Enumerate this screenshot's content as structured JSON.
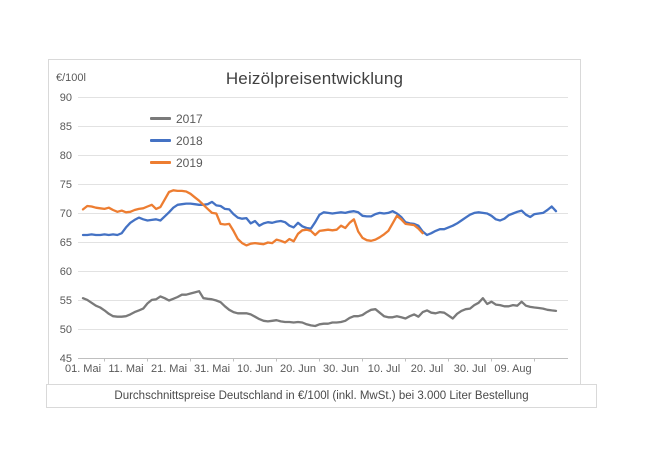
{
  "page": {
    "background": "#ffffff"
  },
  "chart": {
    "title": "Heizölpreisentwicklung",
    "y_axis_unit_label": "€/100l",
    "caption": "Durchschnittspreise Deutschland in €/100l (inkl. MwSt.) bei 3.000 Liter Bestellung"
  },
  "chart_data": {
    "type": "line",
    "title": "Heizölpreisentwicklung",
    "xlabel": "",
    "ylabel": "€/100l",
    "ylim": [
      45,
      90
    ],
    "ytick_values": [
      90,
      85,
      80,
      75,
      70,
      65,
      60,
      55,
      50,
      45
    ],
    "grid": true,
    "legend_position": "inside-top-left",
    "x_unit": "daily values, day 0 = 01. Mai; tick labels every 10 days",
    "x_tick_labels": [
      "01. Mai",
      "11. Mai",
      "21. Mai",
      "31. Mai",
      "10. Jun",
      "20. Jun",
      "30. Jun",
      "10. Jul",
      "20. Jul",
      "30. Jul",
      "09. Aug"
    ],
    "colors": {
      "grid": "#e2e2e2",
      "axis": "#bfbfbf",
      "text": "#595959"
    },
    "series": [
      {
        "name": "2017",
        "color": "#7a7a7a",
        "values": [
          55.4,
          55.1,
          54.6,
          54.1,
          53.8,
          53.3,
          52.7,
          52.3,
          52.2,
          52.2,
          52.3,
          52.6,
          53.0,
          53.3,
          53.6,
          54.5,
          55.1,
          55.2,
          55.7,
          55.4,
          55.0,
          55.3,
          55.6,
          56.0,
          56.0,
          56.2,
          56.4,
          56.6,
          55.4,
          55.3,
          55.2,
          55.0,
          54.7,
          54.0,
          53.4,
          53.0,
          52.8,
          52.8,
          52.8,
          52.6,
          52.2,
          51.8,
          51.5,
          51.4,
          51.5,
          51.6,
          51.4,
          51.3,
          51.3,
          51.2,
          51.3,
          51.2,
          50.9,
          50.7,
          50.6,
          50.9,
          51.0,
          51.0,
          51.2,
          51.2,
          51.3,
          51.5,
          52.0,
          52.3,
          52.3,
          52.5,
          53.0,
          53.4,
          53.5,
          52.9,
          52.3,
          52.1,
          52.1,
          52.3,
          52.1,
          51.9,
          52.3,
          52.6,
          52.2,
          53.0,
          53.3,
          52.9,
          52.8,
          53.0,
          52.9,
          52.4,
          51.9,
          52.7,
          53.2,
          53.5,
          53.6,
          54.2,
          54.6,
          55.4,
          54.4,
          54.8,
          54.3,
          54.2,
          54.0,
          54.0,
          54.2,
          54.1,
          54.8,
          54.1,
          53.9,
          53.8,
          53.7,
          53.6,
          53.4,
          53.3,
          53.2
        ]
      },
      {
        "name": "2018",
        "color": "#4472c4",
        "values": [
          66.3,
          66.3,
          66.4,
          66.3,
          66.3,
          66.4,
          66.3,
          66.4,
          66.3,
          66.6,
          67.6,
          68.4,
          68.9,
          69.3,
          69.0,
          68.8,
          68.9,
          69.0,
          68.8,
          69.5,
          70.2,
          71.0,
          71.5,
          71.6,
          71.7,
          71.7,
          71.6,
          71.5,
          71.5,
          71.6,
          72.0,
          71.4,
          71.3,
          70.8,
          70.7,
          69.9,
          69.3,
          69.1,
          69.2,
          68.3,
          68.7,
          67.9,
          68.3,
          68.5,
          68.4,
          68.6,
          68.7,
          68.5,
          67.9,
          67.6,
          68.4,
          67.8,
          67.5,
          67.4,
          68.5,
          69.8,
          70.2,
          70.1,
          70.0,
          70.1,
          70.2,
          70.1,
          70.3,
          70.4,
          70.2,
          69.6,
          69.5,
          69.5,
          69.9,
          70.1,
          70.0,
          70.1,
          70.4,
          70.0,
          69.4,
          68.5,
          68.3,
          68.2,
          67.9,
          66.9,
          66.3,
          66.6,
          67.0,
          67.3,
          67.3,
          67.6,
          67.9,
          68.3,
          68.8,
          69.3,
          69.8,
          70.1,
          70.2,
          70.1,
          70.0,
          69.6,
          69.0,
          68.8,
          69.1,
          69.7,
          70.0,
          70.3,
          70.5,
          69.8,
          69.4,
          69.9,
          70.0,
          70.1,
          70.6,
          71.2,
          70.4
        ]
      },
      {
        "name": "2019",
        "color": "#ed7d31",
        "values": [
          70.7,
          71.3,
          71.2,
          71.0,
          70.9,
          70.8,
          71.0,
          70.6,
          70.3,
          70.5,
          70.2,
          70.3,
          70.6,
          70.8,
          70.9,
          71.2,
          71.5,
          70.8,
          71.1,
          72.4,
          73.7,
          74.0,
          73.9,
          73.9,
          73.8,
          73.4,
          72.8,
          72.2,
          71.5,
          70.8,
          70.1,
          70.0,
          68.2,
          68.1,
          68.2,
          67.0,
          65.6,
          64.9,
          64.5,
          64.8,
          64.9,
          64.8,
          64.7,
          65.0,
          64.9,
          65.5,
          65.3,
          65.0,
          65.6,
          65.2,
          66.5,
          67.1,
          67.2,
          67.0,
          66.3,
          67.0,
          67.1,
          67.2,
          67.1,
          67.2,
          67.9,
          67.5,
          68.4,
          69.0,
          66.9,
          65.8,
          65.4,
          65.3,
          65.5,
          65.9,
          66.4,
          67.0,
          68.3,
          69.6,
          69.0,
          68.2,
          68.1,
          68.0,
          67.4,
          66.6
        ]
      }
    ]
  }
}
